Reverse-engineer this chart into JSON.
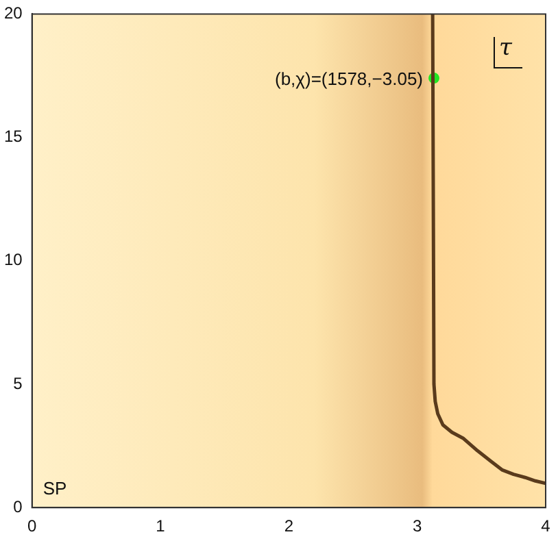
{
  "chart_data": {
    "type": "line",
    "xlim": [
      0,
      4
    ],
    "xticks": [
      0,
      1,
      2,
      3,
      4
    ],
    "ylim": [
      0,
      20
    ],
    "yticks": [
      0,
      5,
      10,
      15,
      20
    ],
    "grid": false,
    "legend": false,
    "series": [
      {
        "color": "#5a3b1c",
        "x": [
          3.12,
          3.13,
          3.14,
          3.16,
          3.2,
          3.27,
          3.36,
          3.47,
          3.58,
          3.66,
          3.75,
          3.84,
          3.92,
          4
        ],
        "values": [
          20,
          5,
          4.3,
          3.8,
          3.35,
          3.05,
          2.8,
          2.3,
          1.85,
          1.53,
          1.35,
          1.22,
          1.08,
          0.98
        ],
        "marker": "none"
      },
      {
        "type": "scatter",
        "color": "#22e622",
        "x": [
          3.13
        ],
        "values": [
          17.4
        ],
        "marker": "circle"
      }
    ],
    "annotations": [
      {
        "text": "(b,χ)=(1578,−3.05)",
        "x": 3.13,
        "y": 17.4
      },
      "τ",
      "SP"
    ]
  }
}
